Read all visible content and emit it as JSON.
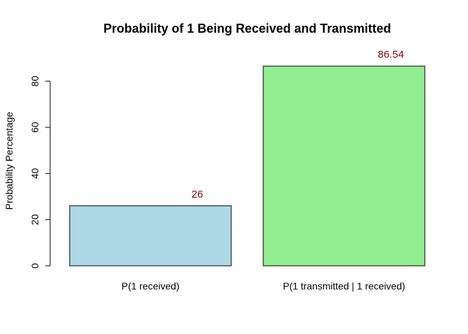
{
  "chart_data": {
    "type": "bar",
    "title": "Probability of 1 Being Received and Transmitted",
    "xlabel": "",
    "ylabel": "Probability Percentage",
    "categories": [
      "P(1 received)",
      "P(1 transmitted | 1 received)"
    ],
    "values": [
      26,
      86.54
    ],
    "value_labels": [
      "26",
      "86.54"
    ],
    "ylim": [
      0,
      86.54
    ],
    "yticks": [
      0,
      20,
      40,
      60,
      80
    ],
    "grid": false,
    "legend": "none",
    "bar_colors": [
      "#add8e6",
      "#90ee90"
    ],
    "bar_border_color": "#000000",
    "label_color": "#8b0000"
  }
}
